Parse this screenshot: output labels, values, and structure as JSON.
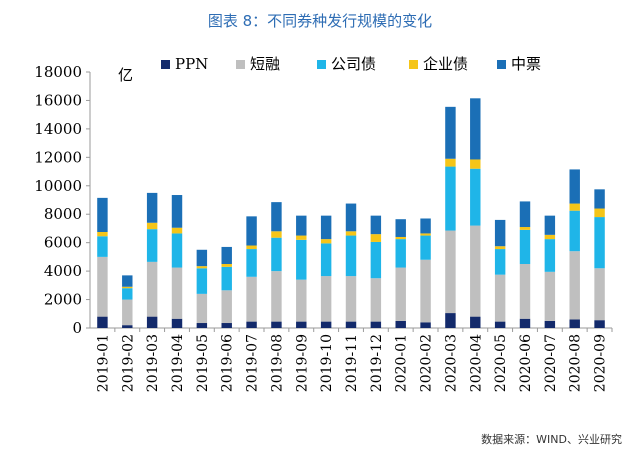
{
  "page": {
    "title": "图表 8：不同券种发行规模的变化",
    "source": "数据来源：WIND、兴业研究"
  },
  "colors": {
    "title": "#2e6db4",
    "PPN": "#132a6b",
    "短融": "#bfbfbf",
    "公司债": "#1fb5e8",
    "企业债": "#f5c518",
    "中票": "#1b6fb6"
  },
  "chart_data": {
    "type": "bar",
    "stacked": true,
    "unit_label": "亿",
    "ylim": [
      0,
      18000
    ],
    "yticks": [
      0,
      2000,
      4000,
      6000,
      8000,
      10000,
      12000,
      14000,
      16000,
      18000
    ],
    "grid": false,
    "legend_position": "top",
    "categories": [
      "2019-01",
      "2019-02",
      "2019-03",
      "2019-04",
      "2019-05",
      "2019-06",
      "2019-07",
      "2019-08",
      "2019-09",
      "2019-10",
      "2019-11",
      "2019-12",
      "2020-01",
      "2020-02",
      "2020-03",
      "2020-04",
      "2020-05",
      "2020-06",
      "2020-07",
      "2020-08",
      "2020-09"
    ],
    "series": [
      {
        "name": "PPN",
        "values": [
          800,
          200,
          800,
          650,
          350,
          350,
          450,
          450,
          450,
          450,
          450,
          450,
          500,
          400,
          1050,
          800,
          450,
          650,
          500,
          600,
          550
        ]
      },
      {
        "name": "短融",
        "values": [
          4200,
          1800,
          3850,
          3600,
          2050,
          2300,
          3150,
          3550,
          2950,
          3200,
          3200,
          3050,
          3750,
          4400,
          5800,
          6400,
          3300,
          3850,
          3450,
          4800,
          3650
        ]
      },
      {
        "name": "公司债",
        "values": [
          1450,
          800,
          2300,
          2400,
          1800,
          1650,
          1950,
          2350,
          2800,
          2300,
          2850,
          2550,
          2000,
          1700,
          4500,
          4000,
          1800,
          2400,
          2300,
          2850,
          3600
        ]
      },
      {
        "name": "企业债",
        "values": [
          300,
          100,
          450,
          400,
          150,
          200,
          250,
          450,
          300,
          300,
          300,
          550,
          150,
          150,
          550,
          650,
          200,
          200,
          300,
          500,
          600
        ]
      },
      {
        "name": "中票",
        "values": [
          2400,
          800,
          2100,
          2300,
          1150,
          1200,
          2050,
          2050,
          1400,
          1650,
          1950,
          1300,
          1250,
          1050,
          3650,
          4300,
          1850,
          1800,
          1350,
          2400,
          1350
        ]
      }
    ]
  }
}
